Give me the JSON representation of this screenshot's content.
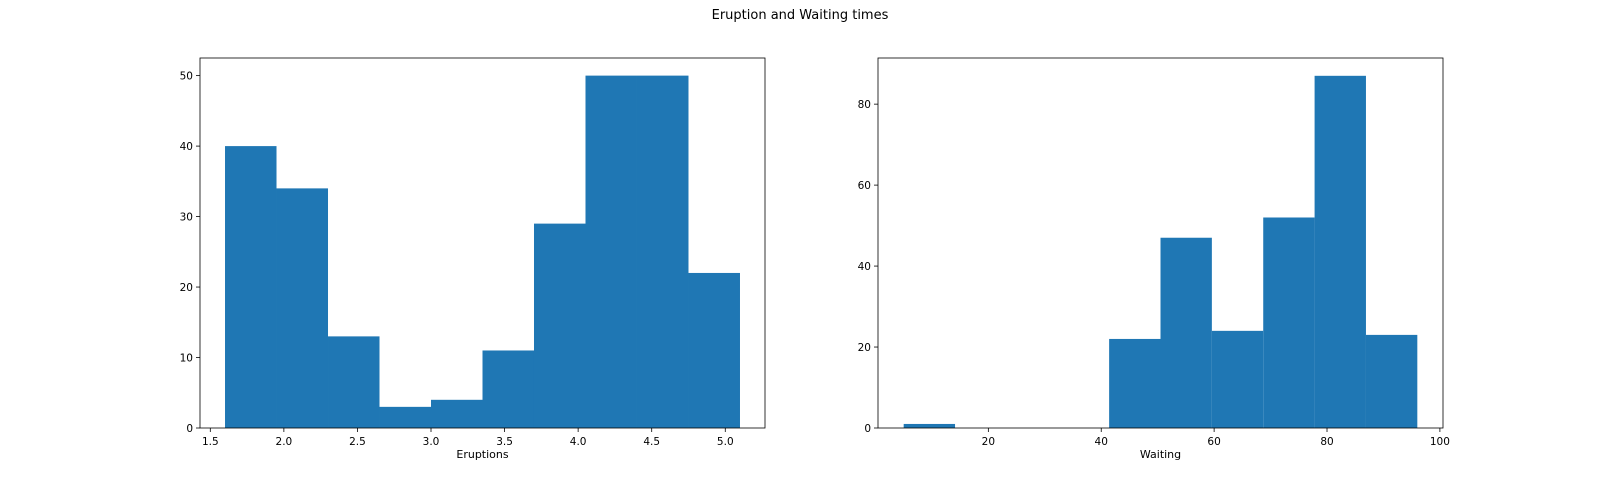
{
  "figure": {
    "title": "Eruption and Waiting times"
  },
  "chart_data": [
    {
      "type": "bar",
      "histogram": true,
      "xlabel": "Eruptions",
      "ylabel": "",
      "xlim": [
        1.43,
        5.27
      ],
      "ylim": [
        0,
        52.5
      ],
      "xticks": [
        1.5,
        2.0,
        2.5,
        3.0,
        3.5,
        4.0,
        4.5,
        5.0
      ],
      "xtick_labels": [
        "1.5",
        "2.0",
        "2.5",
        "3.0",
        "3.5",
        "4.0",
        "4.5",
        "5.0"
      ],
      "yticks": [
        0,
        10,
        20,
        30,
        40,
        50
      ],
      "ytick_labels": [
        "0",
        "10",
        "20",
        "30",
        "40",
        "50"
      ],
      "bin_edges": [
        1.6,
        1.95,
        2.3,
        2.65,
        3.0,
        3.35,
        3.7,
        4.05,
        4.4,
        4.75,
        5.1
      ],
      "values": [
        40,
        34,
        13,
        3,
        4,
        11,
        29,
        50,
        50,
        22
      ],
      "color": "#1f77b4",
      "grid": false
    },
    {
      "type": "bar",
      "histogram": true,
      "xlabel": "Waiting",
      "ylabel": "",
      "xlim": [
        0.45,
        100.55
      ],
      "ylim": [
        0,
        91.4
      ],
      "xticks": [
        20,
        40,
        60,
        80,
        100
      ],
      "xtick_labels": [
        "20",
        "40",
        "60",
        "80",
        "100"
      ],
      "yticks": [
        0,
        20,
        40,
        60,
        80
      ],
      "ytick_labels": [
        "0",
        "20",
        "40",
        "60",
        "80"
      ],
      "bin_edges": [
        5,
        14.1,
        23.2,
        32.3,
        41.4,
        50.5,
        59.6,
        68.7,
        77.8,
        86.9,
        96
      ],
      "values": [
        1,
        0,
        0,
        0,
        22,
        47,
        24,
        52,
        87,
        23
      ],
      "color": "#1f77b4",
      "grid": false
    }
  ]
}
